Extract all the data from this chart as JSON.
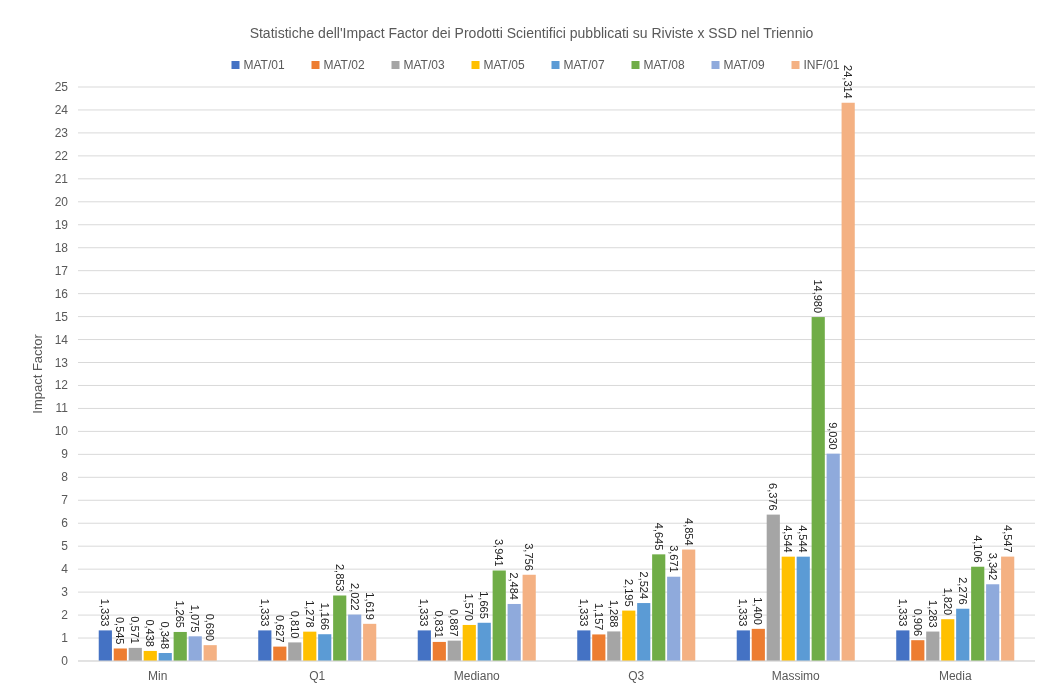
{
  "chart_data": {
    "type": "bar",
    "title": "Statistiche dell'Impact Factor dei Prodotti Scientifici pubblicati su Riviste x SSD nel Triennio",
    "ylabel": "Impact Factor",
    "categories": [
      "Min",
      "Q1",
      "Mediano",
      "Q3",
      "Massimo",
      "Media"
    ],
    "series": [
      {
        "name": "MAT/01",
        "color": "#4472c4",
        "values": [
          1.333,
          1.333,
          1.333,
          1.333,
          1.333,
          1.333
        ],
        "value_labels": [
          "1,333",
          "1,333",
          "1,333",
          "1,333",
          "1,333",
          "1,333"
        ]
      },
      {
        "name": "MAT/02",
        "color": "#ed7d31",
        "values": [
          0.545,
          0.627,
          0.831,
          1.157,
          1.4,
          0.906
        ],
        "value_labels": [
          "0,545",
          "0,627",
          "0,831",
          "1,157",
          "1,400",
          "0,906"
        ]
      },
      {
        "name": "MAT/03",
        "color": "#a5a5a5",
        "values": [
          0.571,
          0.81,
          0.887,
          1.288,
          6.376,
          1.283
        ],
        "value_labels": [
          "0,571",
          "0,810",
          "0,887",
          "1,288",
          "6,376",
          "1,283"
        ]
      },
      {
        "name": "MAT/05",
        "color": "#ffc000",
        "values": [
          0.438,
          1.278,
          1.57,
          2.195,
          4.544,
          1.82
        ],
        "value_labels": [
          "0,438",
          "1,278",
          "1,570",
          "2,195",
          "4,544",
          "1,820"
        ]
      },
      {
        "name": "MAT/07",
        "color": "#5b9bd5",
        "values": [
          0.348,
          1.166,
          1.665,
          2.524,
          4.544,
          2.276
        ],
        "value_labels": [
          "0,348",
          "1,166",
          "1,665",
          "2,524",
          "4,544",
          "2,276"
        ]
      },
      {
        "name": "MAT/08",
        "color": "#70ad47",
        "values": [
          1.265,
          2.853,
          3.941,
          4.645,
          14.98,
          4.106
        ],
        "value_labels": [
          "1,265",
          "2,853",
          "3,941",
          "4,645",
          "14,980",
          "4,106"
        ]
      },
      {
        "name": "MAT/09",
        "color": "#8faadc",
        "values": [
          1.075,
          2.022,
          2.484,
          3.671,
          9.03,
          3.342
        ],
        "value_labels": [
          "1,075",
          "2,022",
          "2,484",
          "3,671",
          "9,030",
          "3,342"
        ]
      },
      {
        "name": "INF/01",
        "color": "#f4b183",
        "values": [
          0.69,
          1.619,
          3.756,
          4.854,
          24.314,
          4.547
        ],
        "value_labels": [
          "0,690",
          "1,619",
          "3,756",
          "4,854",
          "24,314",
          "4,547"
        ]
      }
    ],
    "ylim": [
      0,
      25
    ],
    "yticks": [
      0,
      1,
      2,
      3,
      4,
      5,
      6,
      7,
      8,
      9,
      10,
      11,
      12,
      13,
      14,
      15,
      16,
      17,
      18,
      19,
      20,
      21,
      22,
      23,
      24,
      25
    ],
    "grid": "y",
    "legend": "top"
  }
}
